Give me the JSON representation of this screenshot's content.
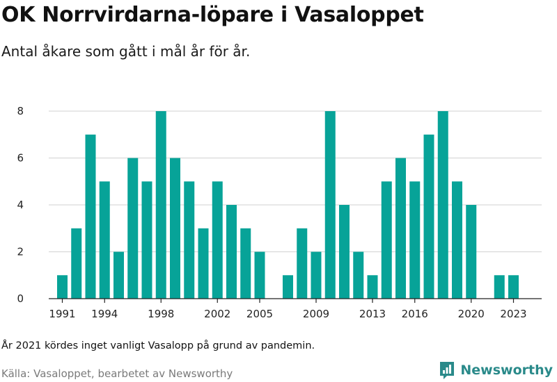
{
  "header": {
    "title": "OK Norrvirdarna-löpare i Vasaloppet",
    "subtitle": "Antal åkare som gått i mål år för år."
  },
  "footer": {
    "note": "År 2021 kördes inget vanligt Vasalopp på grund av pandemin.",
    "source": "Källa: Vasaloppet, bearbetet av Newsworthy",
    "brand": "Newsworthy",
    "brand_icon": "newsworthy-logo-icon"
  },
  "colors": {
    "bar": "#07a398",
    "grid": "#d9d9d9",
    "axis": "#222222",
    "brand": "#2a8a8a"
  },
  "chart_data": {
    "type": "bar",
    "title": "OK Norrvirdarna-löpare i Vasaloppet",
    "subtitle": "Antal åkare som gått i mål år för år.",
    "xlabel": "",
    "ylabel": "",
    "categories": [
      1991,
      1992,
      1993,
      1994,
      1995,
      1996,
      1997,
      1998,
      1999,
      2000,
      2001,
      2002,
      2003,
      2004,
      2005,
      2006,
      2007,
      2008,
      2009,
      2010,
      2011,
      2012,
      2013,
      2014,
      2015,
      2016,
      2017,
      2018,
      2019,
      2020,
      2021,
      2022,
      2023
    ],
    "values": [
      1,
      3,
      7,
      5,
      2,
      6,
      5,
      8,
      6,
      5,
      3,
      5,
      4,
      3,
      2,
      0,
      1,
      3,
      2,
      8,
      4,
      2,
      1,
      5,
      6,
      5,
      7,
      8,
      5,
      4,
      0,
      1,
      1
    ],
    "x_tick_labels": [
      "1991",
      "1994",
      "1998",
      "2002",
      "2005",
      "2009",
      "2013",
      "2016",
      "2020",
      "2023"
    ],
    "y_ticks": [
      0,
      2,
      4,
      6,
      8
    ],
    "ylim": [
      0,
      8
    ],
    "grid": true,
    "legend": "none"
  }
}
